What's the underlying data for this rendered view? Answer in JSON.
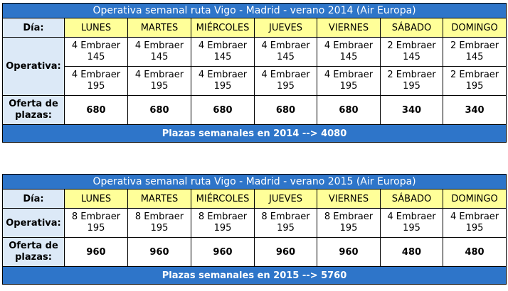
{
  "t2014": {
    "title": "Operativa semanal ruta Vigo - Madrid - verano 2014 (Air Europa)",
    "dia_label": "Día:",
    "days": [
      "LUNES",
      "MARTES",
      "MIÉRCOLES",
      "JUEVES",
      "VIERNES",
      "SÁBADO",
      "DOMINGO"
    ],
    "operativa_label": "Operativa:",
    "row145": [
      [
        "4 Embraer",
        "145"
      ],
      [
        "4 Embraer",
        "145"
      ],
      [
        "4 Embraer",
        "145"
      ],
      [
        "4 Embraer",
        "145"
      ],
      [
        "4 Embraer",
        "145"
      ],
      [
        "2 Embraer",
        "145"
      ],
      [
        "2 Embraer",
        "145"
      ]
    ],
    "row195": [
      [
        "4 Embraer",
        "195"
      ],
      [
        "4 Embraer",
        "195"
      ],
      [
        "4 Embraer",
        "195"
      ],
      [
        "4 Embraer",
        "195"
      ],
      [
        "4 Embraer",
        "195"
      ],
      [
        "2 Embraer",
        "195"
      ],
      [
        "2 Embraer",
        "195"
      ]
    ],
    "oferta_label": [
      "Oferta de",
      "plazas:"
    ],
    "oferta": [
      "680",
      "680",
      "680",
      "680",
      "680",
      "340",
      "340"
    ],
    "total": "Plazas semanales en 2014 --> 4080"
  },
  "t2015": {
    "title": "Operativa semanal ruta Vigo - Madrid - verano 2015 (Air Europa)",
    "dia_label": "Día:",
    "days": [
      "LUNES",
      "MARTES",
      "MIÉRCOLES",
      "JUEVES",
      "VIERNES",
      "SÁBADO",
      "DOMINGO"
    ],
    "operativa_label": "Operativa:",
    "row195": [
      [
        "8 Embraer",
        "195"
      ],
      [
        "8 Embraer",
        "195"
      ],
      [
        "8 Embraer",
        "195"
      ],
      [
        "8 Embraer",
        "195"
      ],
      [
        "8 Embraer",
        "195"
      ],
      [
        "4 Embraer",
        "195"
      ],
      [
        "4 Embraer",
        "195"
      ]
    ],
    "oferta_label": [
      "Oferta de",
      "plazas:"
    ],
    "oferta": [
      "960",
      "960",
      "960",
      "960",
      "960",
      "480",
      "480"
    ],
    "total": "Plazas semanales en 2015 --> 5760"
  },
  "colors": {
    "title_bar": "#2e75c9",
    "label_cells": "#dce9f7",
    "day_headers": "#ffff99"
  }
}
